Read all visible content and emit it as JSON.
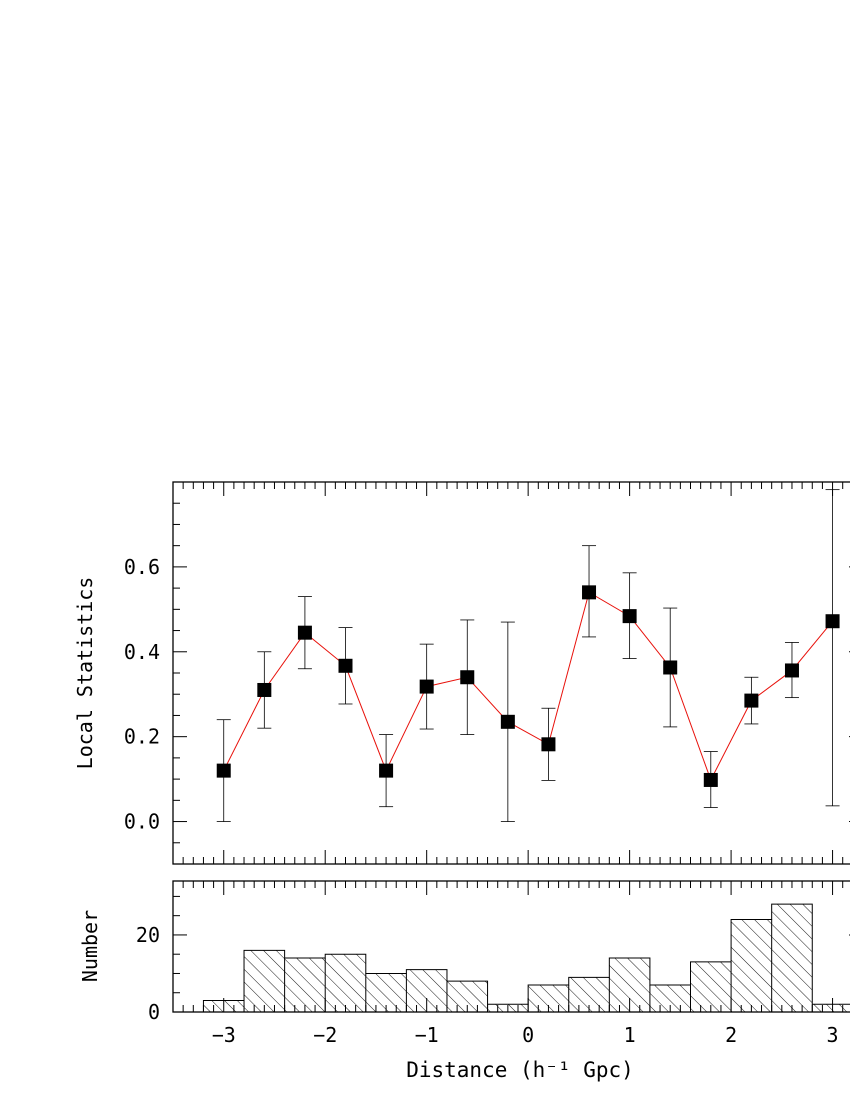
{
  "chart_data": [
    {
      "type": "line",
      "ylabel": "Local Statistics",
      "xlim": [
        -3.5,
        3.3
      ],
      "ylim": [
        -0.1,
        0.8
      ],
      "yticks": [
        "0.0",
        "0.2",
        "0.4",
        "0.6"
      ],
      "line_color": "#e8110b",
      "marker_color": "#000000",
      "series": [
        {
          "x": [
            -3.0,
            -2.6,
            -2.2,
            -1.8,
            -1.4,
            -1.0,
            -0.6,
            -0.2,
            0.2,
            0.6,
            1.0,
            1.4,
            1.8,
            2.2,
            2.6,
            3.0
          ],
          "y": [
            0.12,
            0.31,
            0.445,
            0.367,
            0.12,
            0.318,
            0.34,
            0.235,
            0.182,
            0.54,
            0.484,
            0.363,
            0.098,
            0.285,
            0.356,
            0.472
          ],
          "err_low": [
            0.12,
            0.09,
            0.085,
            0.09,
            0.085,
            0.1,
            0.135,
            0.235,
            0.085,
            0.105,
            0.1,
            0.14,
            0.065,
            0.055,
            0.064,
            0.435
          ],
          "err_high": [
            0.12,
            0.09,
            0.085,
            0.09,
            0.085,
            0.1,
            0.135,
            0.235,
            0.085,
            0.11,
            0.102,
            0.14,
            0.067,
            0.055,
            0.066,
            0.31
          ]
        }
      ]
    },
    {
      "type": "bar",
      "ylabel": "Number",
      "xlabel": "Distance (h⁻¹ Gpc)",
      "xlim": [
        -3.5,
        3.3
      ],
      "ylim": [
        0,
        34
      ],
      "yticks": [
        "0",
        "20"
      ],
      "xticks": [
        "−3",
        "−2",
        "−1",
        "0",
        "1",
        "2",
        "3"
      ],
      "bin_edges": [
        -3.2,
        -2.8,
        -2.4,
        -2.0,
        -1.6,
        -1.2,
        -0.8,
        -0.4,
        0.0,
        0.4,
        0.8,
        1.2,
        1.6,
        2.0,
        2.4,
        2.8,
        3.2
      ],
      "values": [
        3,
        16,
        14,
        15,
        10,
        11,
        8,
        2,
        7,
        9,
        14,
        7,
        13,
        24,
        28,
        2
      ]
    }
  ]
}
